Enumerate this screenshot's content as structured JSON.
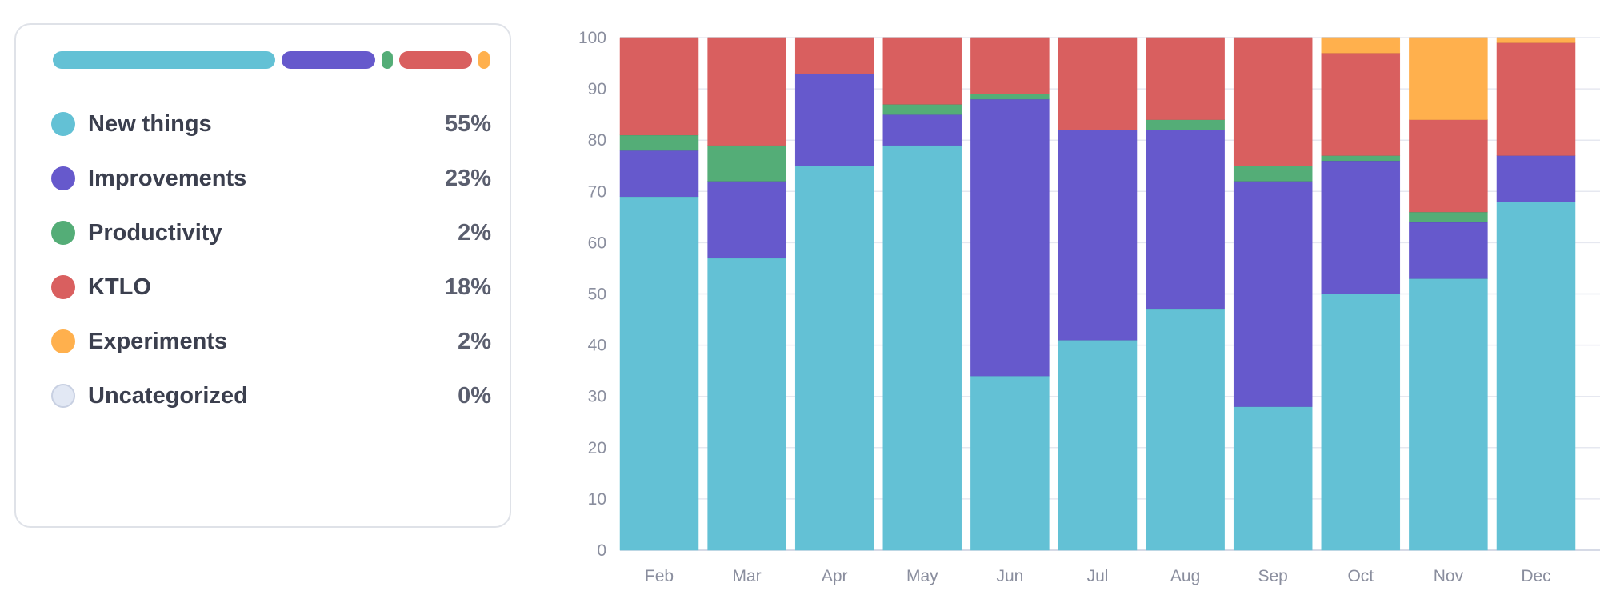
{
  "legend": {
    "items": [
      {
        "label": "New things",
        "percent": "55%",
        "share": 0.55,
        "color": "#63c1d5"
      },
      {
        "label": "Improvements",
        "percent": "23%",
        "share": 0.23,
        "color": "#6659cc"
      },
      {
        "label": "Productivity",
        "percent": "2%",
        "share": 0.02,
        "color": "#54ad77"
      },
      {
        "label": "KTLO",
        "percent": "18%",
        "share": 0.18,
        "color": "#d95f5f"
      },
      {
        "label": "Experiments",
        "percent": "2%",
        "share": 0.02,
        "color": "#ffb04d"
      },
      {
        "label": "Uncategorized",
        "percent": "0%",
        "share": 0.0,
        "color": "#e2e8f4"
      }
    ]
  },
  "chart_data": {
    "type": "bar",
    "stacked": true,
    "categories": [
      "Feb",
      "Mar",
      "Apr",
      "May",
      "Jun",
      "Jul",
      "Aug",
      "Sep",
      "Oct",
      "Nov",
      "Dec"
    ],
    "ylim": [
      0,
      100
    ],
    "yticks": [
      0,
      10,
      20,
      30,
      40,
      50,
      60,
      70,
      80,
      90,
      100
    ],
    "grid": true,
    "series": [
      {
        "name": "New things",
        "color": "#63c1d5",
        "values": [
          69,
          57,
          75,
          79,
          34,
          41,
          47,
          28,
          50,
          53,
          68
        ]
      },
      {
        "name": "Improvements",
        "color": "#6659cc",
        "values": [
          9,
          15,
          18,
          6,
          54,
          41,
          35,
          44,
          26,
          11,
          9
        ]
      },
      {
        "name": "Productivity",
        "color": "#54ad77",
        "values": [
          3,
          7,
          0,
          2,
          1,
          0,
          2,
          3,
          1,
          2,
          0
        ]
      },
      {
        "name": "KTLO",
        "color": "#d95f5f",
        "values": [
          19,
          21,
          7,
          13,
          11,
          18,
          16,
          25,
          20,
          18,
          22
        ]
      },
      {
        "name": "Experiments",
        "color": "#ffb04d",
        "values": [
          0,
          0,
          0,
          0,
          0,
          0,
          0,
          0,
          3,
          16,
          1
        ]
      }
    ]
  }
}
